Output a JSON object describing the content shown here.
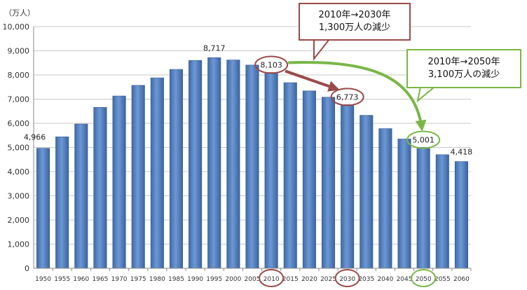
{
  "colors": {
    "bar": "#4f7fc0",
    "bar_edge": "#2f5a96",
    "red_callout": "#9b4a4a",
    "green_callout": "#7ab648",
    "grid": "#c8c8c8"
  },
  "chart_data": {
    "type": "bar",
    "unit_label": "（万人）",
    "categories": [
      "1950",
      "1955",
      "1960",
      "1965",
      "1970",
      "1975",
      "1980",
      "1985",
      "1990",
      "1995",
      "2000",
      "2005",
      "2010",
      "2015",
      "2020",
      "2025",
      "2030",
      "2035",
      "2040",
      "2045",
      "2050",
      "2055",
      "2060"
    ],
    "values": [
      4966,
      5440,
      5970,
      6660,
      7130,
      7570,
      7880,
      8230,
      8600,
      8717,
      8620,
      8410,
      8103,
      7680,
      7340,
      7080,
      6773,
      6330,
      5780,
      5350,
      5001,
      4700,
      4418
    ],
    "ylim": [
      0,
      10000
    ],
    "yticks": [
      0,
      1000,
      2000,
      3000,
      4000,
      5000,
      6000,
      7000,
      8000,
      9000,
      10000
    ],
    "ytick_labels": [
      "0",
      "1,000",
      "2,000",
      "3,000",
      "4,000",
      "5,000",
      "6,000",
      "7,000",
      "8,000",
      "9,000",
      "10,000"
    ],
    "grid": true,
    "data_labels": [
      {
        "category": "1950",
        "text": "4,966",
        "value": 4966
      },
      {
        "category": "1995",
        "text": "8,717",
        "value": 8717
      },
      {
        "category": "2010",
        "text": "8,103",
        "value": 8103
      },
      {
        "category": "2030",
        "text": "6,773",
        "value": 6773
      },
      {
        "category": "2050",
        "text": "5,001",
        "value": 5001
      },
      {
        "category": "2060",
        "text": "4,418",
        "value": 4418
      }
    ],
    "highlighted_categories": [
      {
        "category": "2010",
        "color": "red"
      },
      {
        "category": "2030",
        "color": "red"
      },
      {
        "category": "2050",
        "color": "green"
      }
    ],
    "annotations": [
      {
        "name": "red-callout",
        "lines": [
          "2010年→2030年",
          "1,300万人の減少"
        ],
        "from": "2010",
        "to": "2030",
        "color": "red"
      },
      {
        "name": "green-callout",
        "lines": [
          "2010年→2050年",
          "3,100万人の減少"
        ],
        "from": "2010",
        "to": "2050",
        "color": "green"
      }
    ]
  }
}
